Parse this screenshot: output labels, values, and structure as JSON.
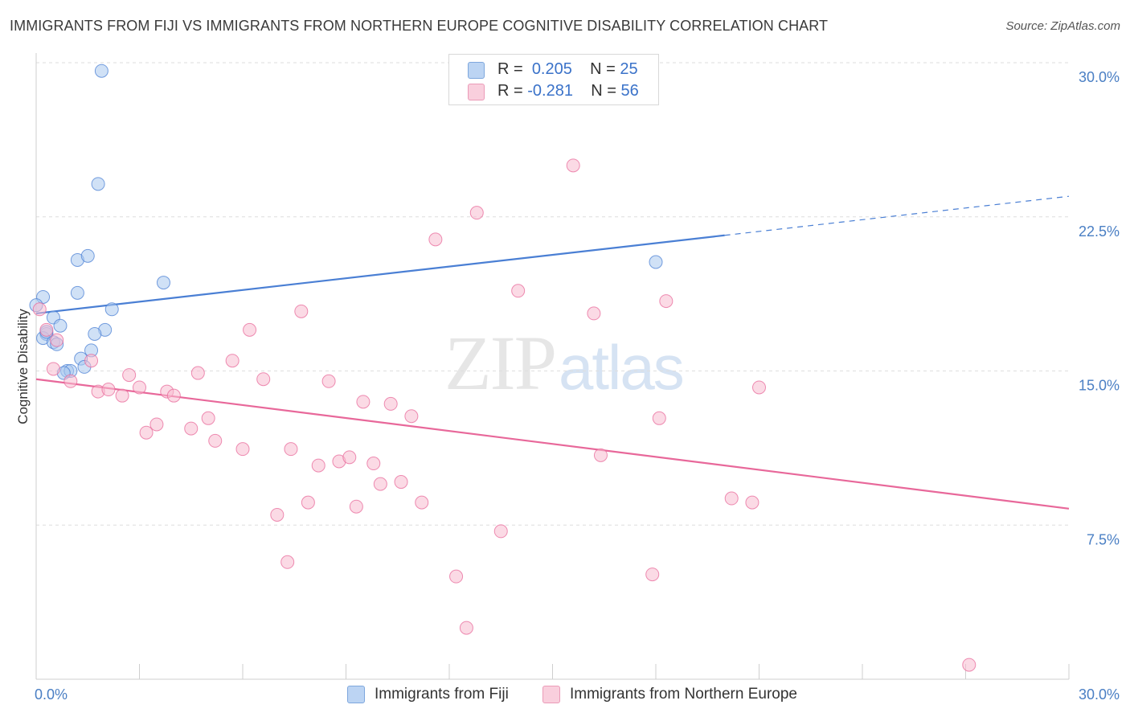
{
  "title": "IMMIGRANTS FROM FIJI VS IMMIGRANTS FROM NORTHERN EUROPE COGNITIVE DISABILITY CORRELATION CHART",
  "source": "Source: ZipAtlas.com",
  "watermark": {
    "zip": "ZIP",
    "atlas": "atlas"
  },
  "legend": {
    "r_label": "R =",
    "n_label": "N =",
    "rows": [
      {
        "r": "0.205",
        "n": "25",
        "color": "#a9c8ef"
      },
      {
        "r": "-0.281",
        "n": "56",
        "color": "#f7bcd0"
      }
    ]
  },
  "chart_data": {
    "type": "scatter",
    "xlabel": "",
    "ylabel": "Cognitive Disability",
    "xlim": [
      0,
      30
    ],
    "ylim": [
      0,
      30
    ],
    "x_tick_labels": [
      "0.0%",
      "30.0%"
    ],
    "y_ticks": [
      7.5,
      15.0,
      22.5,
      30.0
    ],
    "y_tick_labels": [
      "7.5%",
      "15.0%",
      "22.5%",
      "30.0%"
    ],
    "grid": true,
    "legend_position": "bottom",
    "series": [
      {
        "name": "Immigrants from Fiji",
        "color": "#4a7fd4",
        "fill": "#a9c8ef",
        "points": [
          [
            1.9,
            29.6
          ],
          [
            1.8,
            24.1
          ],
          [
            1.2,
            20.4
          ],
          [
            1.5,
            20.6
          ],
          [
            3.7,
            19.3
          ],
          [
            1.2,
            18.8
          ],
          [
            0.2,
            18.6
          ],
          [
            2.2,
            18.0
          ],
          [
            0.0,
            18.2
          ],
          [
            0.5,
            17.6
          ],
          [
            0.7,
            17.2
          ],
          [
            2.0,
            17.0
          ],
          [
            0.3,
            16.8
          ],
          [
            1.7,
            16.8
          ],
          [
            0.2,
            16.6
          ],
          [
            0.5,
            16.4
          ],
          [
            0.6,
            16.3
          ],
          [
            1.6,
            16.0
          ],
          [
            1.3,
            15.6
          ],
          [
            1.4,
            15.2
          ],
          [
            0.9,
            15.0
          ],
          [
            1.0,
            15.0
          ],
          [
            0.8,
            14.9
          ],
          [
            18.0,
            20.3
          ],
          [
            0.3,
            16.9
          ]
        ],
        "trend": {
          "x0": 0.0,
          "y0": 17.8,
          "x1": 20.0,
          "y1": 21.6,
          "dash_to_x": 30.0,
          "dash_to_y": 23.5
        }
      },
      {
        "name": "Immigrants from Northern Europe",
        "color": "#e8689a",
        "fill": "#f7bcd0",
        "points": [
          [
            0.1,
            18.0
          ],
          [
            0.6,
            16.5
          ],
          [
            1.0,
            14.5
          ],
          [
            1.6,
            15.5
          ],
          [
            1.8,
            14.0
          ],
          [
            2.1,
            14.1
          ],
          [
            2.5,
            13.8
          ],
          [
            2.7,
            14.8
          ],
          [
            3.0,
            14.2
          ],
          [
            3.2,
            12.0
          ],
          [
            3.5,
            12.4
          ],
          [
            3.8,
            14.0
          ],
          [
            4.0,
            13.8
          ],
          [
            4.5,
            12.2
          ],
          [
            4.7,
            14.9
          ],
          [
            5.0,
            12.7
          ],
          [
            5.2,
            11.6
          ],
          [
            5.7,
            15.5
          ],
          [
            6.0,
            11.2
          ],
          [
            6.2,
            17.0
          ],
          [
            6.6,
            14.6
          ],
          [
            7.0,
            8.0
          ],
          [
            7.3,
            5.7
          ],
          [
            7.4,
            11.2
          ],
          [
            7.7,
            17.9
          ],
          [
            7.9,
            8.6
          ],
          [
            8.2,
            10.4
          ],
          [
            8.5,
            14.5
          ],
          [
            8.8,
            10.6
          ],
          [
            9.1,
            10.8
          ],
          [
            9.3,
            8.4
          ],
          [
            9.5,
            13.5
          ],
          [
            9.8,
            10.5
          ],
          [
            10.0,
            9.5
          ],
          [
            10.3,
            13.4
          ],
          [
            10.6,
            9.6
          ],
          [
            10.9,
            12.8
          ],
          [
            11.2,
            8.6
          ],
          [
            11.6,
            21.4
          ],
          [
            12.2,
            5.0
          ],
          [
            12.5,
            2.5
          ],
          [
            12.8,
            22.7
          ],
          [
            13.5,
            7.2
          ],
          [
            14.0,
            18.9
          ],
          [
            15.6,
            25.0
          ],
          [
            16.2,
            17.8
          ],
          [
            16.4,
            10.9
          ],
          [
            17.9,
            5.1
          ],
          [
            18.1,
            12.7
          ],
          [
            18.3,
            18.4
          ],
          [
            20.2,
            8.8
          ],
          [
            20.8,
            8.6
          ],
          [
            21.0,
            14.2
          ],
          [
            27.1,
            0.7
          ],
          [
            0.3,
            17.0
          ],
          [
            0.5,
            15.1
          ]
        ],
        "trend": {
          "x0": 0.0,
          "y0": 14.6,
          "x1": 30.0,
          "y1": 8.3
        }
      }
    ]
  }
}
